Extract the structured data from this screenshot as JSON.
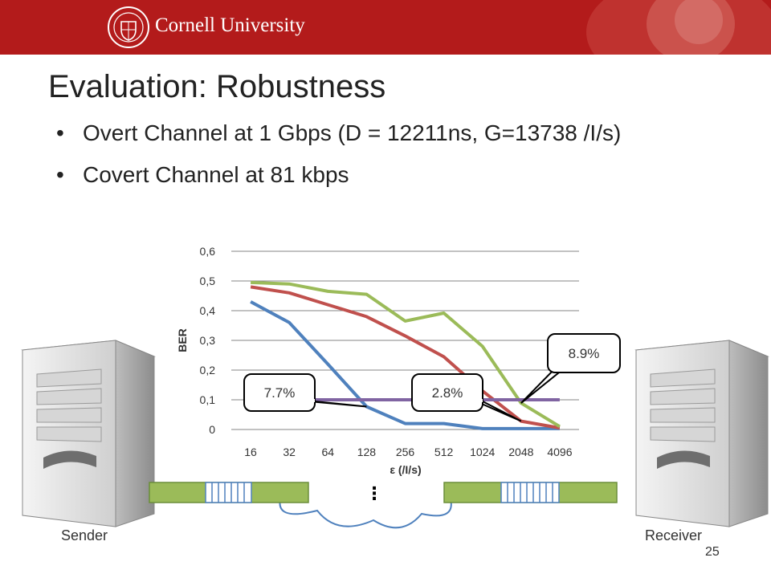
{
  "header": {
    "university": "Cornell University",
    "seal_icon": "cornell-seal-icon",
    "brand_color": "#b31b1b"
  },
  "slide": {
    "title": "Evaluation: Robustness",
    "bullets": [
      "Overt Channel at 1 Gbps (D = 12211ns, G=13738 /I/s)",
      "Covert Channel at 81 kbps"
    ],
    "page_number": "25"
  },
  "diagram": {
    "sender_label": "Sender",
    "receiver_label": "Receiver",
    "ellipsis": "⋮"
  },
  "chart_data": {
    "type": "line",
    "title": "",
    "xlabel": "ε (/I/s)",
    "ylabel": "BER",
    "categories": [
      "16",
      "32",
      "64",
      "128",
      "256",
      "512",
      "1024",
      "2048",
      "4096"
    ],
    "y_ticks": [
      "0",
      "0,1",
      "0,2",
      "0,3",
      "0,4",
      "0,5",
      "0,6"
    ],
    "ylim": [
      0,
      0.6
    ],
    "grid": true,
    "legend": "none",
    "series": [
      {
        "color": "#4f81bd",
        "values": [
          0.43,
          0.36,
          0.22,
          0.077,
          0.02,
          0.02,
          0.003,
          0.003,
          0.003
        ]
      },
      {
        "color": "#c0504d",
        "values": [
          0.48,
          0.46,
          0.42,
          0.38,
          0.315,
          0.245,
          0.13,
          0.028,
          0.005
        ]
      },
      {
        "color": "#9bbb59",
        "values": [
          0.495,
          0.49,
          0.465,
          0.455,
          0.365,
          0.392,
          0.28,
          0.089,
          0.01
        ]
      },
      {
        "color": "#8064a2",
        "values": [
          0.1,
          0.1,
          0.1,
          0.1,
          0.1,
          0.1,
          0.1,
          0.1,
          0.1
        ]
      }
    ],
    "annotations": [
      {
        "text": "7.7%",
        "x": "128",
        "y": 0.077
      },
      {
        "text": "2.8%",
        "x": "2048",
        "y": 0.028
      },
      {
        "text": "8.9%",
        "x": "2048",
        "y": 0.089
      }
    ]
  }
}
